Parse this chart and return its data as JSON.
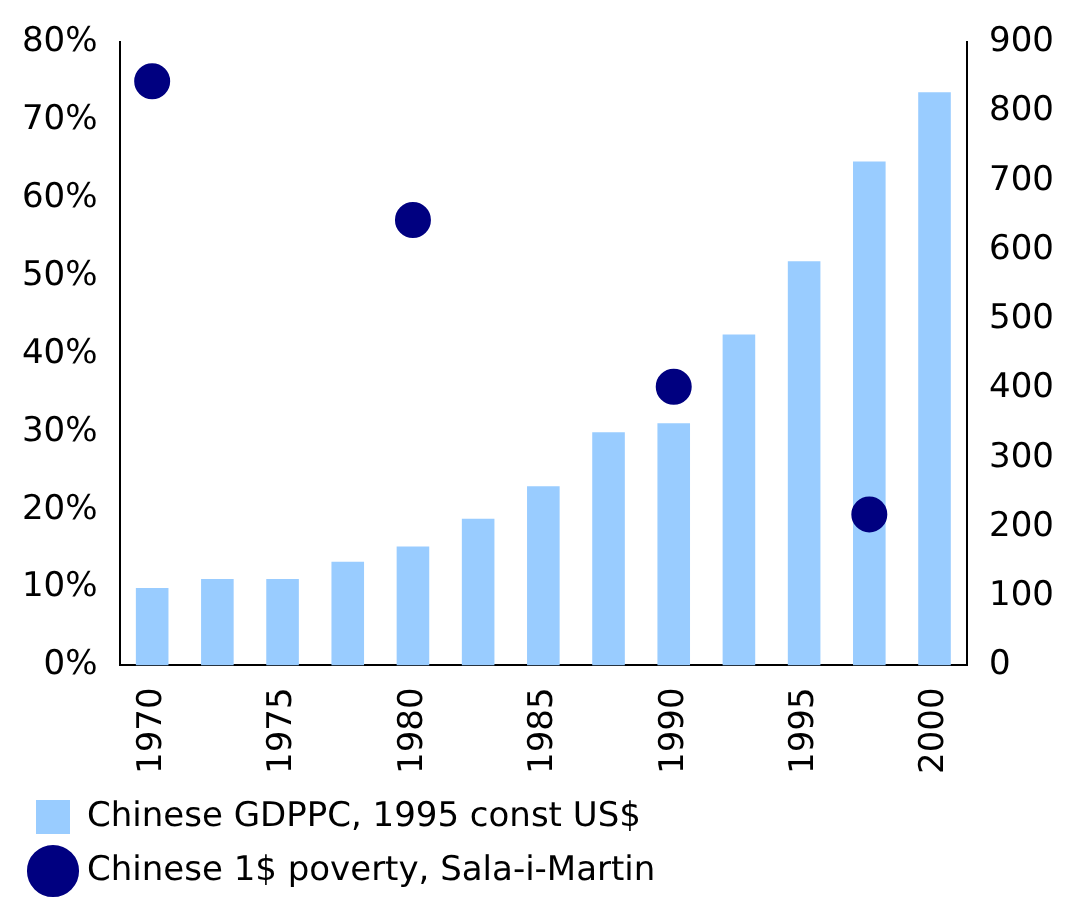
{
  "chart_data": {
    "type": "bar",
    "categories": [
      "1970",
      null,
      "1975",
      null,
      "1980",
      null,
      "1985",
      null,
      "1990",
      null,
      "1995",
      null,
      "2000"
    ],
    "series": [
      {
        "name": "Chinese GDPPC, 1995 const US$",
        "axis": "y2",
        "color": "#99ccff",
        "values": [
          112,
          125,
          125,
          150,
          172,
          212,
          259,
          337,
          350,
          478,
          584,
          728,
          828
        ]
      },
      {
        "name": "Chinese 1$ poverty, Sala-i-Martin",
        "type": "scatter",
        "axis": "y",
        "color": "#000080",
        "marker": "circle",
        "values": [
          75,
          null,
          null,
          null,
          57.2,
          null,
          null,
          null,
          35.8,
          null,
          null,
          19.4,
          null
        ]
      }
    ],
    "ylim": [
      0,
      80
    ],
    "yticks": [
      {
        "value": 0,
        "label": "0%"
      },
      {
        "value": 10,
        "label": "10%"
      },
      {
        "value": 20,
        "label": "20%"
      },
      {
        "value": 30,
        "label": "30%"
      },
      {
        "value": 40,
        "label": "40%"
      },
      {
        "value": 50,
        "label": "50%"
      },
      {
        "value": 60,
        "label": "60%"
      },
      {
        "value": 70,
        "label": "70%"
      },
      {
        "value": 80,
        "label": "80%"
      }
    ],
    "y2lim": [
      0,
      900
    ],
    "y2ticks": [
      0,
      100,
      200,
      300,
      400,
      500,
      600,
      700,
      800,
      900
    ],
    "grid": false,
    "legend": "bottom"
  }
}
